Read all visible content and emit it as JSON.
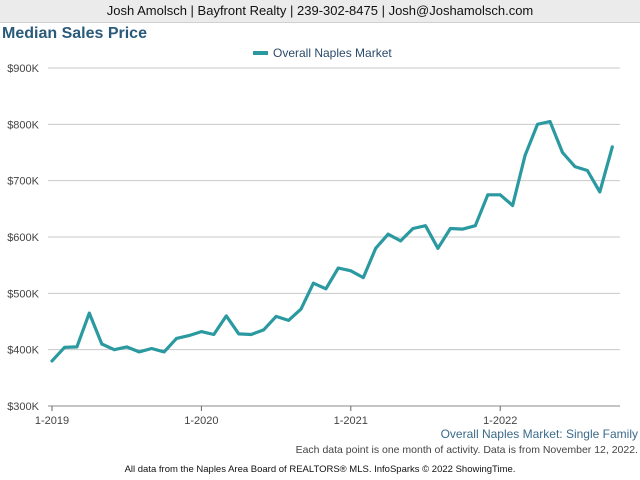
{
  "header": {
    "contact": "Josh Amolsch | Bayfront Realty | 239-302-8475 | Josh@Joshamolsch.com"
  },
  "chart_data": {
    "type": "line",
    "title": "Median Sales Price",
    "subtitle": "Overall Naples Market: Single Family",
    "note": "Each data point is one month of activity. Data is from November 12, 2022.",
    "footer": "All data from the Naples Area Board of REALTORS® MLS. InfoSparks © 2022 ShowingTime.",
    "xlabel": "",
    "ylabel": "",
    "ylim": [
      300000,
      900000
    ],
    "y_ticks": [
      {
        "value": 300000,
        "label": "$300K"
      },
      {
        "value": 400000,
        "label": "$400K"
      },
      {
        "value": 500000,
        "label": "$500K"
      },
      {
        "value": 600000,
        "label": "$600K"
      },
      {
        "value": 700000,
        "label": "$700K"
      },
      {
        "value": 800000,
        "label": "$800K"
      },
      {
        "value": 900000,
        "label": "$900K"
      }
    ],
    "x_ticks": [
      {
        "index": 0,
        "label": "1-2019"
      },
      {
        "index": 12,
        "label": "1-2020"
      },
      {
        "index": 24,
        "label": "1-2021"
      },
      {
        "index": 36,
        "label": "1-2022"
      }
    ],
    "grid": true,
    "legend_position": "top-center",
    "series": [
      {
        "name": "Overall Naples Market",
        "color": "#2a9aa0",
        "x": [
          "2019-01",
          "2019-02",
          "2019-03",
          "2019-04",
          "2019-05",
          "2019-06",
          "2019-07",
          "2019-08",
          "2019-09",
          "2019-10",
          "2019-11",
          "2019-12",
          "2020-01",
          "2020-02",
          "2020-03",
          "2020-04",
          "2020-05",
          "2020-06",
          "2020-07",
          "2020-08",
          "2020-09",
          "2020-10",
          "2020-11",
          "2020-12",
          "2021-01",
          "2021-02",
          "2021-03",
          "2021-04",
          "2021-05",
          "2021-06",
          "2021-07",
          "2021-08",
          "2021-09",
          "2021-10",
          "2021-11",
          "2021-12",
          "2022-01",
          "2022-02",
          "2022-03",
          "2022-04",
          "2022-05",
          "2022-06",
          "2022-07",
          "2022-08",
          "2022-09",
          "2022-10"
        ],
        "values": [
          380000,
          404000,
          405000,
          465000,
          410000,
          400000,
          405000,
          396000,
          402000,
          396000,
          420000,
          425000,
          432000,
          427000,
          460000,
          428000,
          427000,
          435000,
          459000,
          452000,
          472000,
          518000,
          508000,
          545000,
          540000,
          528000,
          580000,
          605000,
          593000,
          615000,
          620000,
          580000,
          615000,
          614000,
          620000,
          675000,
          675000,
          656000,
          745000,
          800000,
          805000,
          750000,
          725000,
          718000,
          680000,
          760000
        ]
      }
    ]
  }
}
